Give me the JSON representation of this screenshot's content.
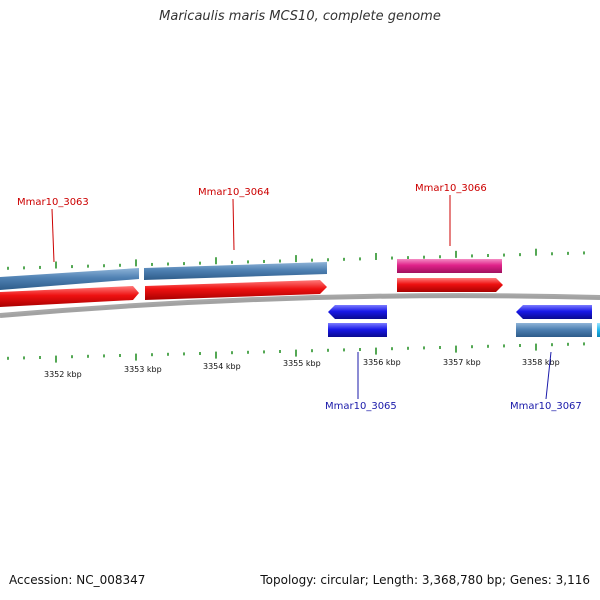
{
  "title": "Maricaulis maris MCS10, complete genome",
  "accession_text": "Accession: NC_008347",
  "topology_text": "Topology: circular; Length: 3,368,780 bp; Genes: 3,116",
  "colors": {
    "backbone": "#8a8a8a",
    "tick": "#1a8a1a",
    "gene_forward_blue": "#4f81b3",
    "cds_forward_red": "#ee1111",
    "rna_forward_pink": "#e0228a",
    "gene_reverse_blue": "#4f81b3",
    "cds_reverse_blue": "#1818e8",
    "reverse_partial_cyan": "#22b8ee",
    "label_forward": "#cc0000",
    "label_reverse": "#1a1aaa"
  },
  "tick_labels": [
    "3352 kbp",
    "3353 kbp",
    "3354 kbp",
    "3355 kbp",
    "3356 kbp",
    "3357 kbp",
    "3358 kbp"
  ],
  "genes": [
    {
      "id": "Mmar10_3063",
      "strand": "forward"
    },
    {
      "id": "Mmar10_3064",
      "strand": "forward"
    },
    {
      "id": "Mmar10_3065",
      "strand": "reverse"
    },
    {
      "id": "Mmar10_3066",
      "strand": "forward"
    },
    {
      "id": "Mmar10_3067",
      "strand": "reverse"
    }
  ]
}
